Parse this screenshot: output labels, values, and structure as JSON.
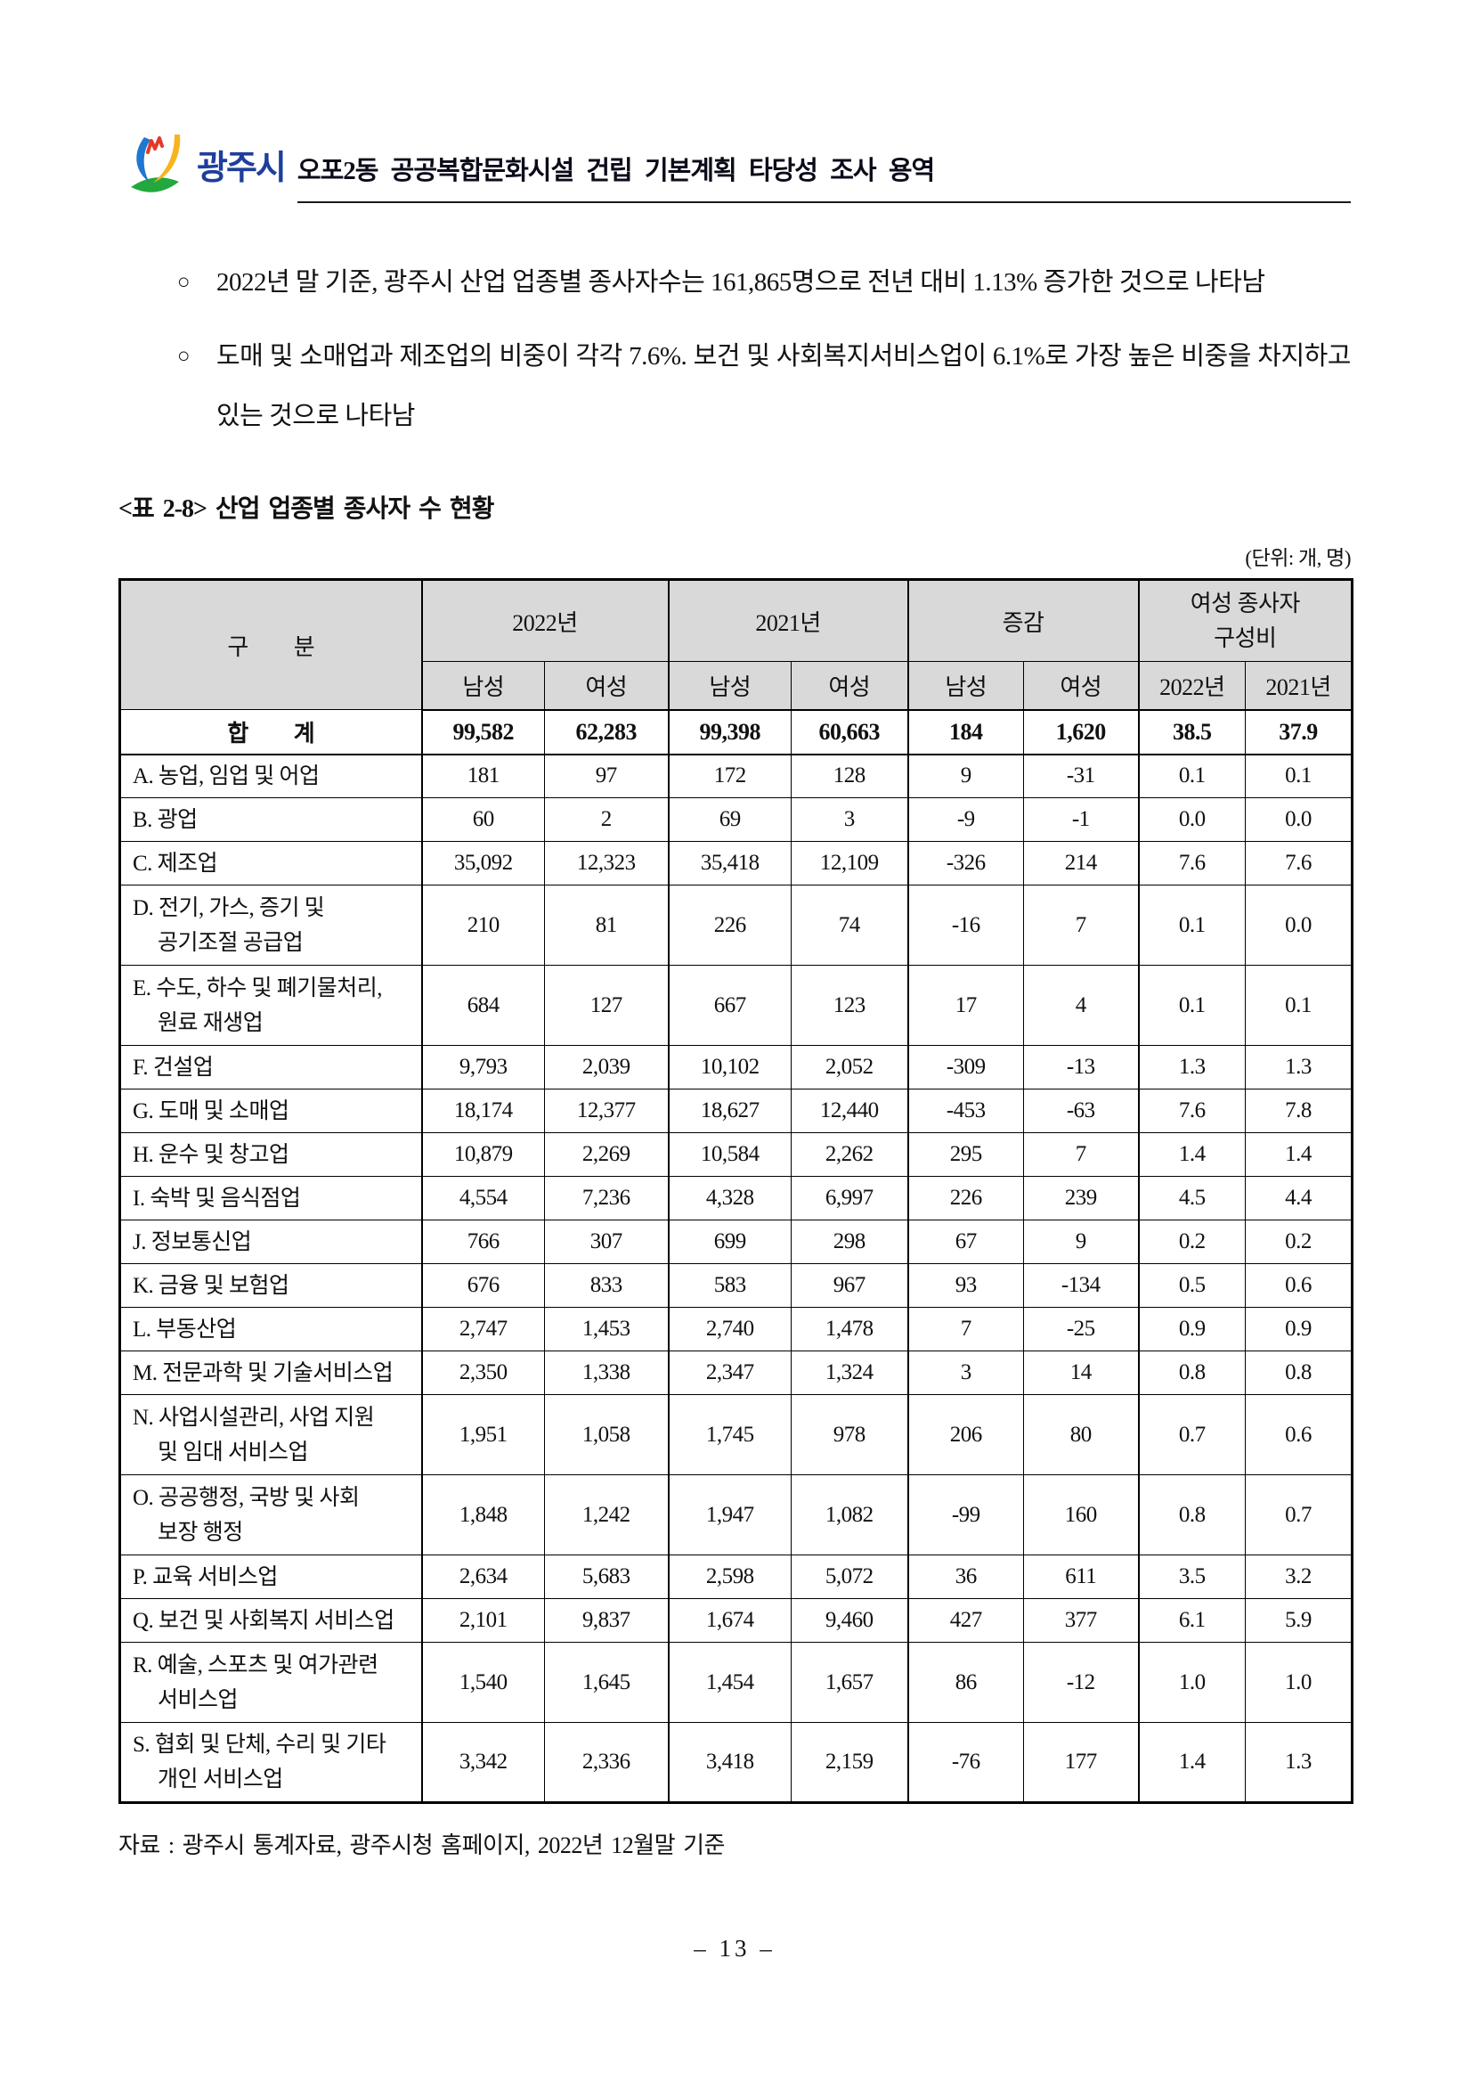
{
  "header": {
    "logo_text": "광주시",
    "title": "오포2동 공공복합문화시설 건립 기본계획 타당성 조사 용역"
  },
  "bullets": {
    "marker": "○",
    "items": [
      "2022년 말 기준, 광주시 산업 업종별 종사자수는 161,865명으로 전년 대비 1.13% 증가한 것으로 나타남",
      "도매 및 소매업과 제조업의 비중이 각각 7.6%. 보건 및 사회복지서비스업이 6.1%로 가장 높은 비중을 차지하고 있는 것으로 나타남"
    ]
  },
  "table": {
    "caption": "<표 2-8> 산업 업종별 종사자 수 현황",
    "unit_note": "(단위: 개, 명)",
    "header": {
      "category": "구  분",
      "groups": [
        {
          "label": "2022년"
        },
        {
          "label": "2021년"
        },
        {
          "label": "증감"
        },
        {
          "label": "여성 종사자\n구성비"
        }
      ],
      "sub": [
        "남성",
        "여성",
        "남성",
        "여성",
        "남성",
        "여성",
        "2022년",
        "2021년"
      ]
    },
    "total_row": {
      "label": "합  계",
      "values": [
        "99,582",
        "62,283",
        "99,398",
        "60,663",
        "184",
        "1,620",
        "38.5",
        "37.9"
      ]
    },
    "rows": [
      {
        "label": "A. 농업, 임업 및 어업",
        "values": [
          "181",
          "97",
          "172",
          "128",
          "9",
          "-31",
          "0.1",
          "0.1"
        ]
      },
      {
        "label": "B. 광업",
        "values": [
          "60",
          "2",
          "69",
          "3",
          "-9",
          "-1",
          "0.0",
          "0.0"
        ]
      },
      {
        "label": "C. 제조업",
        "values": [
          "35,092",
          "12,323",
          "35,418",
          "12,109",
          "-326",
          "214",
          "7.6",
          "7.6"
        ]
      },
      {
        "label": "D. 전기, 가스, 증기 및",
        "label2": "공기조절 공급업",
        "values": [
          "210",
          "81",
          "226",
          "74",
          "-16",
          "7",
          "0.1",
          "0.0"
        ]
      },
      {
        "label": "E. 수도, 하수 및 폐기물처리,",
        "label2": "원료 재생업",
        "values": [
          "684",
          "127",
          "667",
          "123",
          "17",
          "4",
          "0.1",
          "0.1"
        ]
      },
      {
        "label": "F. 건설업",
        "values": [
          "9,793",
          "2,039",
          "10,102",
          "2,052",
          "-309",
          "-13",
          "1.3",
          "1.3"
        ]
      },
      {
        "label": "G. 도매 및 소매업",
        "values": [
          "18,174",
          "12,377",
          "18,627",
          "12,440",
          "-453",
          "-63",
          "7.6",
          "7.8"
        ]
      },
      {
        "label": "H. 운수 및 창고업",
        "values": [
          "10,879",
          "2,269",
          "10,584",
          "2,262",
          "295",
          "7",
          "1.4",
          "1.4"
        ]
      },
      {
        "label": "I. 숙박 및 음식점업",
        "values": [
          "4,554",
          "7,236",
          "4,328",
          "6,997",
          "226",
          "239",
          "4.5",
          "4.4"
        ]
      },
      {
        "label": "J. 정보통신업",
        "values": [
          "766",
          "307",
          "699",
          "298",
          "67",
          "9",
          "0.2",
          "0.2"
        ]
      },
      {
        "label": "K. 금융 및 보험업",
        "values": [
          "676",
          "833",
          "583",
          "967",
          "93",
          "-134",
          "0.5",
          "0.6"
        ]
      },
      {
        "label": "L. 부동산업",
        "values": [
          "2,747",
          "1,453",
          "2,740",
          "1,478",
          "7",
          "-25",
          "0.9",
          "0.9"
        ]
      },
      {
        "label": "M. 전문과학 및 기술서비스업",
        "values": [
          "2,350",
          "1,338",
          "2,347",
          "1,324",
          "3",
          "14",
          "0.8",
          "0.8"
        ]
      },
      {
        "label": "N. 사업시설관리, 사업 지원",
        "label2": "및 임대 서비스업",
        "values": [
          "1,951",
          "1,058",
          "1,745",
          "978",
          "206",
          "80",
          "0.7",
          "0.6"
        ]
      },
      {
        "label": "O. 공공행정, 국방 및 사회",
        "label2": "보장 행정",
        "values": [
          "1,848",
          "1,242",
          "1,947",
          "1,082",
          "-99",
          "160",
          "0.8",
          "0.7"
        ]
      },
      {
        "label": "P. 교육 서비스업",
        "values": [
          "2,634",
          "5,683",
          "2,598",
          "5,072",
          "36",
          "611",
          "3.5",
          "3.2"
        ]
      },
      {
        "label": "Q. 보건 및 사회복지 서비스업",
        "values": [
          "2,101",
          "9,837",
          "1,674",
          "9,460",
          "427",
          "377",
          "6.1",
          "5.9"
        ]
      },
      {
        "label": "R. 예술, 스포츠 및 여가관련",
        "label2": "서비스업",
        "values": [
          "1,540",
          "1,645",
          "1,454",
          "1,657",
          "86",
          "-12",
          "1.0",
          "1.0"
        ]
      },
      {
        "label": "S. 협회 및 단체, 수리 및 기타",
        "label2": "개인 서비스업",
        "values": [
          "3,342",
          "2,336",
          "3,418",
          "2,159",
          "-76",
          "177",
          "1.4",
          "1.3"
        ]
      }
    ]
  },
  "source_note": "자료 : 광주시 통계자료, 광주시청 홈페이지, 2022년 12월말 기준",
  "page_number": "– 13 –",
  "colors": {
    "logo_blue": "#1e3e9e",
    "header_cell_bg": "#d9d9d9",
    "border_black": "#000000"
  }
}
